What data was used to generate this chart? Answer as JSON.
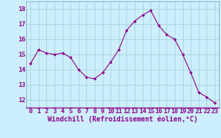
{
  "x": [
    0,
    1,
    2,
    3,
    4,
    5,
    6,
    7,
    8,
    9,
    10,
    11,
    12,
    13,
    14,
    15,
    16,
    17,
    18,
    19,
    20,
    21,
    22,
    23
  ],
  "y": [
    14.4,
    15.3,
    15.1,
    15.0,
    15.1,
    14.8,
    14.0,
    13.5,
    13.4,
    13.8,
    14.5,
    15.3,
    16.6,
    17.2,
    17.6,
    17.9,
    16.9,
    16.3,
    16.0,
    15.0,
    13.8,
    12.5,
    12.2,
    11.8
  ],
  "line_color": "#8b008b",
  "marker_color": "#8b008b",
  "bg_color": "#cceeff",
  "grid_color": "#99cccc",
  "xlabel": "Windchill (Refroidissement éolien,°C)",
  "xlabel_color": "#8b008b",
  "tick_color": "#8b008b",
  "ylim": [
    11.5,
    18.5
  ],
  "yticks": [
    12,
    13,
    14,
    15,
    16,
    17,
    18
  ],
  "xtick_labels": [
    "0",
    "1",
    "2",
    "3",
    "4",
    "5",
    "6",
    "7",
    "8",
    "9",
    "10",
    "11",
    "12",
    "13",
    "14",
    "15",
    "16",
    "17",
    "18",
    "19",
    "20",
    "21",
    "22",
    "23"
  ],
  "font_size": 6.5,
  "xlabel_fontsize": 7
}
